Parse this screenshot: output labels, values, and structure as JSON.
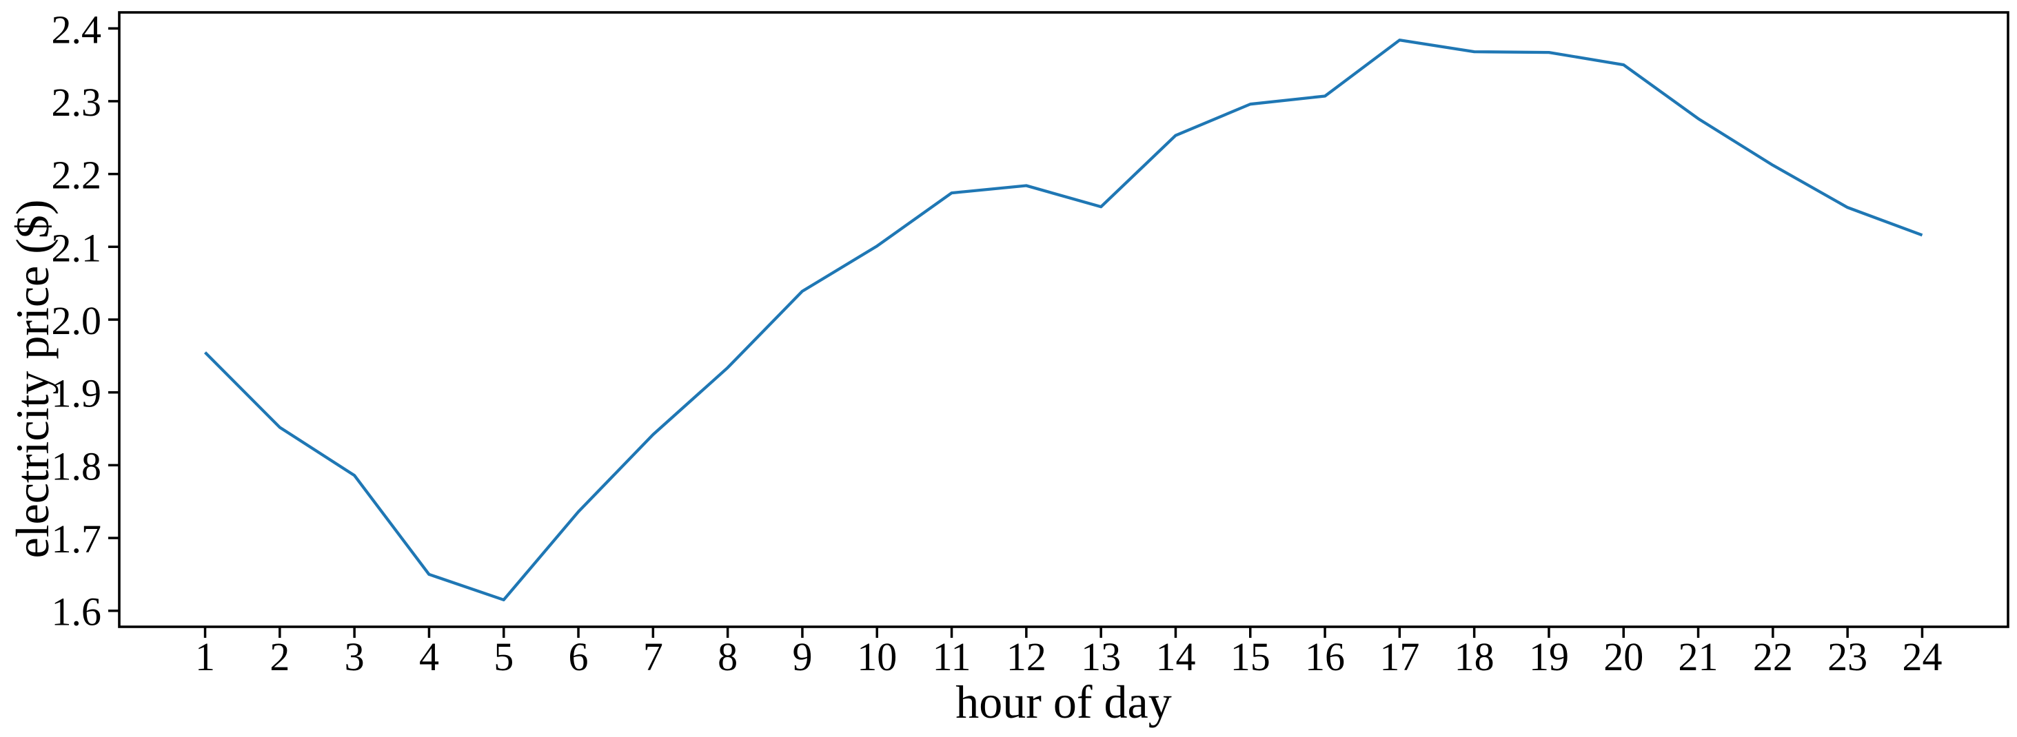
{
  "figure": {
    "background_color": "#ffffff",
    "axis_color": "#000000",
    "text_color": "#000000"
  },
  "chart_data": {
    "type": "line",
    "title": "",
    "xlabel": "hour of day",
    "ylabel": "electricity price ($)",
    "x": [
      1,
      2,
      3,
      4,
      5,
      6,
      7,
      8,
      9,
      10,
      11,
      12,
      13,
      14,
      15,
      16,
      17,
      18,
      19,
      20,
      21,
      22,
      23,
      24
    ],
    "series": [
      {
        "name": "electricity price",
        "color": "#1f77b4",
        "values": [
          1.955,
          1.852,
          1.786,
          1.65,
          1.615,
          1.736,
          1.842,
          1.934,
          2.039,
          2.101,
          2.174,
          2.184,
          2.155,
          2.253,
          2.296,
          2.307,
          2.384,
          2.368,
          2.367,
          2.35,
          2.276,
          2.212,
          2.154,
          2.116
        ]
      }
    ],
    "xlim": [
      -0.15,
      25.15
    ],
    "ylim": [
      1.578,
      2.422
    ],
    "x_ticks": [
      1,
      2,
      3,
      4,
      5,
      6,
      7,
      8,
      9,
      10,
      11,
      12,
      13,
      14,
      15,
      16,
      17,
      18,
      19,
      20,
      21,
      22,
      23,
      24
    ],
    "x_tick_labels": [
      "1",
      "2",
      "3",
      "4",
      "5",
      "6",
      "7",
      "8",
      "9",
      "10",
      "11",
      "12",
      "13",
      "14",
      "15",
      "16",
      "17",
      "18",
      "19",
      "20",
      "21",
      "22",
      "23",
      "24"
    ],
    "y_ticks": [
      1.6,
      1.7,
      1.8,
      1.9,
      2.0,
      2.1,
      2.2,
      2.3,
      2.4
    ],
    "y_tick_labels": [
      "1.6",
      "1.7",
      "1.8",
      "1.9",
      "2.0",
      "2.1",
      "2.2",
      "2.3",
      "2.4"
    ],
    "grid": false,
    "legend_position": "none"
  }
}
